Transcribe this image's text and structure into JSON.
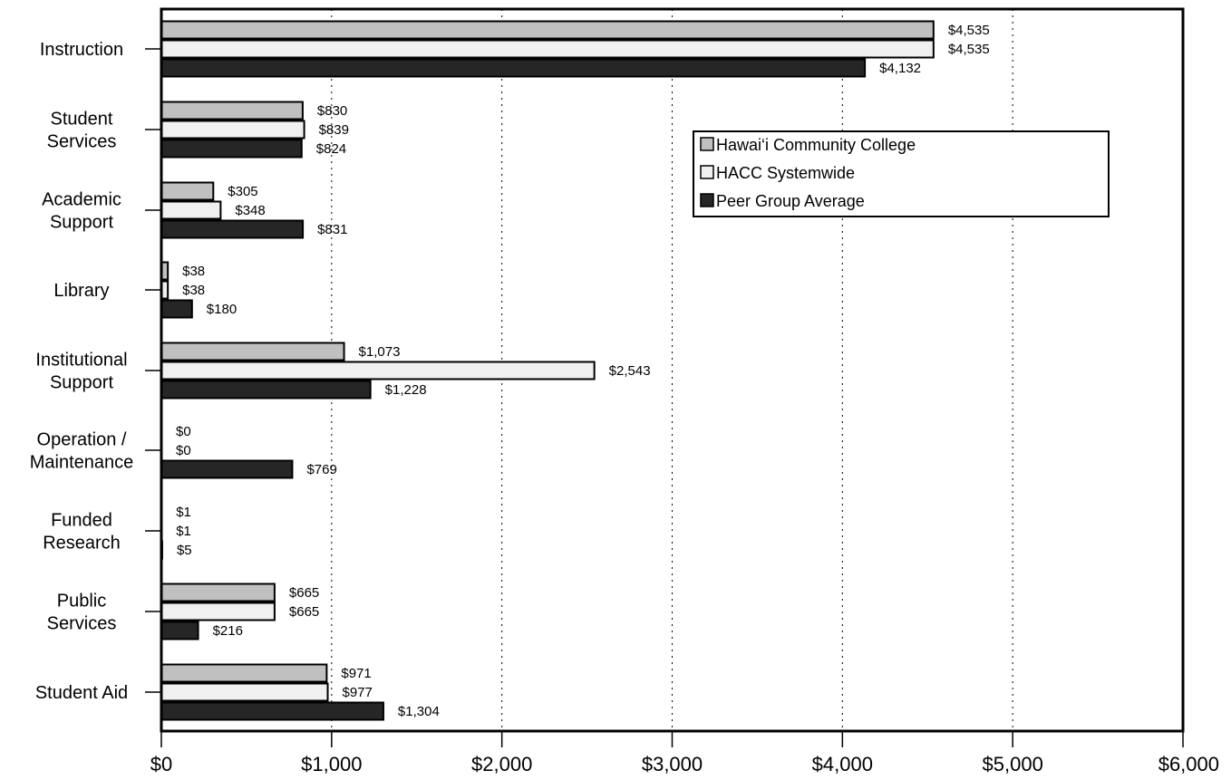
{
  "chart_data": {
    "type": "bar",
    "orientation": "horizontal",
    "categories": [
      "Instruction",
      "Student Services",
      "Academic Support",
      "Library",
      "Institutional Support",
      "Operation / Maintenance",
      "Funded Research",
      "Public Services",
      "Student Aid"
    ],
    "category_label_lines": [
      [
        "Instruction"
      ],
      [
        "Student",
        "Services"
      ],
      [
        "Academic",
        "Support"
      ],
      [
        "Library"
      ],
      [
        "Institutional",
        "Support"
      ],
      [
        "Operation /",
        "Maintenance"
      ],
      [
        "Funded",
        "Research"
      ],
      [
        "Public",
        "Services"
      ],
      [
        "Student Aid"
      ]
    ],
    "series": [
      {
        "name": "Hawai‘i Community College",
        "color": "#c0c0c0",
        "values": [
          4535,
          830,
          305,
          38,
          1073,
          0,
          1,
          665,
          971
        ],
        "labels": [
          "$4,535",
          "$830",
          "$305",
          "$38",
          "$1,073",
          "$0",
          "$1",
          "$665",
          "$971"
        ]
      },
      {
        "name": "HACC Systemwide",
        "color": "#f0f0f0",
        "values": [
          4535,
          839,
          348,
          38,
          2543,
          0,
          1,
          665,
          977
        ],
        "labels": [
          "$4,535",
          "$839",
          "$348",
          "$38",
          "$2,543",
          "$0",
          "$1",
          "$665",
          "$977"
        ]
      },
      {
        "name": "Peer Group Average",
        "color": "#262626",
        "values": [
          4132,
          824,
          831,
          180,
          1228,
          769,
          5,
          216,
          1304
        ],
        "labels": [
          "$4,132",
          "$824",
          "$831",
          "$180",
          "$1,228",
          "$769",
          "$5",
          "$216",
          "$1,304"
        ]
      }
    ],
    "xlim": [
      0,
      6000
    ],
    "xticks": [
      0,
      1000,
      2000,
      3000,
      4000,
      5000,
      6000
    ],
    "xtick_labels": [
      "$0",
      "$1,000",
      "$2,000",
      "$3,000",
      "$4,000",
      "$5,000",
      "$6,000"
    ],
    "grid": "vertical dotted",
    "legend_position": "right-middle"
  }
}
